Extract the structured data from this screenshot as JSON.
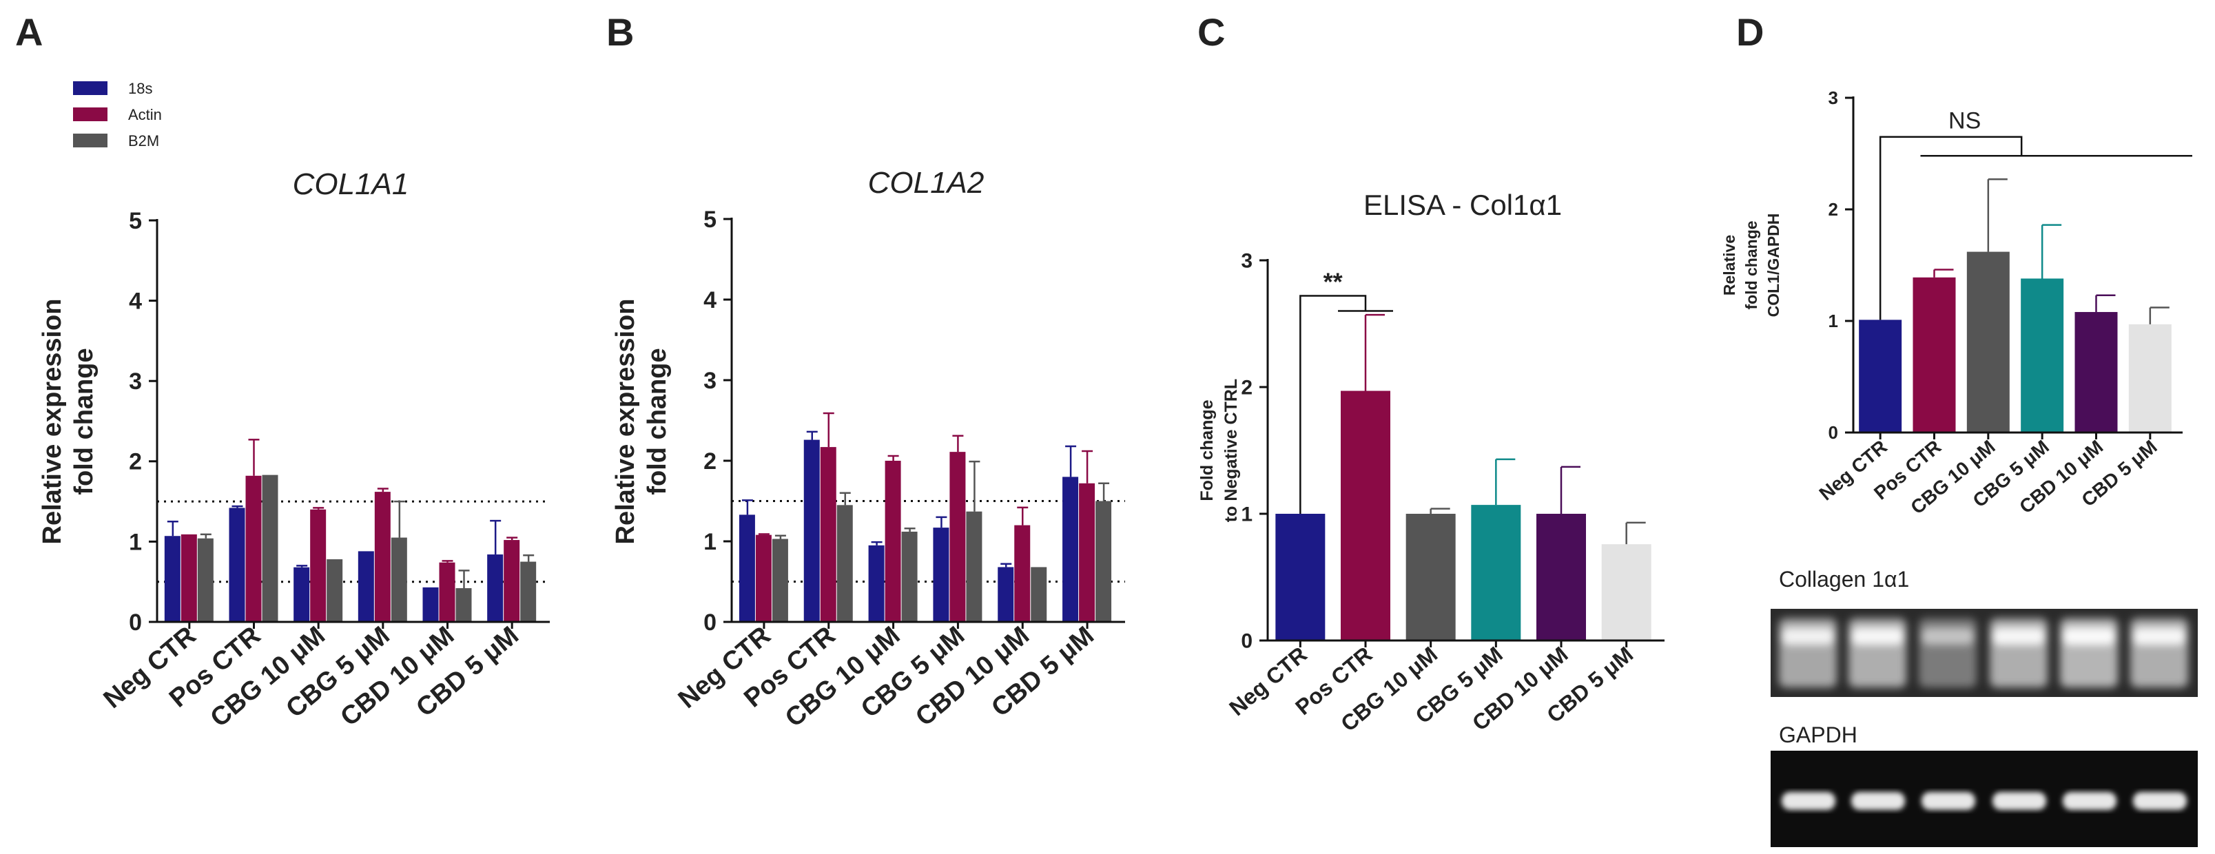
{
  "colors": {
    "neg_ctr": "#1c1a87",
    "pos_ctr": "#8a0a45",
    "cbg10": "#555555",
    "cbg5": "#0f8a8a",
    "cbd10": "#4a0d58",
    "cbd5": "#e3e3e3",
    "s18": "#1c1a87",
    "actin": "#8a0a45",
    "b2m": "#555555"
  },
  "chart_data": [
    {
      "panel": "A",
      "type": "bar",
      "title": "COL1A1",
      "ylabel_lines": [
        "Relative expression",
        "fold change"
      ],
      "xlabel": "",
      "categories": [
        "Neg CTR",
        "Pos CTR",
        "CBG 10 μM",
        "CBG 5 μM",
        "CBD 10 μM",
        "CBD 5 μM"
      ],
      "ylim": [
        0,
        5
      ],
      "yticks": [
        "0",
        "1",
        "2",
        "3",
        "4",
        "5"
      ],
      "reference_lines": [
        0.5,
        1.5
      ],
      "legend": [
        "18s",
        "Actin",
        "B2M"
      ],
      "series": [
        {
          "name": "18s",
          "values": [
            1.07,
            1.42,
            0.68,
            0.88,
            0.43,
            0.84
          ],
          "errors": [
            0.18,
            0.02,
            0.02,
            0.0,
            0.0,
            0.42
          ]
        },
        {
          "name": "Actin",
          "values": [
            1.09,
            1.82,
            1.4,
            1.62,
            0.74,
            1.02
          ],
          "errors": [
            0.0,
            0.45,
            0.02,
            0.04,
            0.02,
            0.03
          ]
        },
        {
          "name": "B2M",
          "values": [
            1.04,
            1.83,
            0.78,
            1.05,
            0.42,
            0.75
          ],
          "errors": [
            0.05,
            0.0,
            0.0,
            0.45,
            0.22,
            0.08
          ]
        }
      ]
    },
    {
      "panel": "B",
      "type": "bar",
      "title": "COL1A2",
      "ylabel_lines": [
        "Relative expression",
        "fold change"
      ],
      "xlabel": "",
      "categories": [
        "Neg CTR",
        "Pos CTR",
        "CBG 10 μM",
        "CBG 5 μM",
        "CBD 10 μM",
        "CBD 5 μM"
      ],
      "ylim": [
        0,
        5
      ],
      "yticks": [
        "0",
        "1",
        "2",
        "3",
        "4",
        "5"
      ],
      "reference_lines": [
        0.5,
        1.5
      ],
      "series": [
        {
          "name": "18s",
          "values": [
            1.33,
            2.26,
            0.95,
            1.17,
            0.68,
            1.8
          ],
          "errors": [
            0.18,
            0.1,
            0.04,
            0.13,
            0.04,
            0.38
          ]
        },
        {
          "name": "Actin",
          "values": [
            1.08,
            2.17,
            2.0,
            2.11,
            1.2,
            1.72
          ],
          "errors": [
            0.01,
            0.42,
            0.06,
            0.2,
            0.22,
            0.4
          ]
        },
        {
          "name": "B2M",
          "values": [
            1.03,
            1.45,
            1.12,
            1.37,
            0.68,
            1.5
          ],
          "errors": [
            0.04,
            0.15,
            0.04,
            0.62,
            0.0,
            0.22
          ]
        }
      ]
    },
    {
      "panel": "C",
      "type": "bar",
      "title": "ELISA - Col1α1",
      "ylabel_lines": [
        "Fold change",
        "to Negative CTRL"
      ],
      "xlabel": "",
      "categories": [
        "Neg CTR",
        "Pos CTR",
        "CBG 10 μM",
        "CBG 5 μM",
        "CBD 10 μM",
        "CBD 5 μM"
      ],
      "ylim": [
        0,
        3
      ],
      "yticks": [
        "0",
        "1",
        "2",
        "3"
      ],
      "series": [
        {
          "name": "",
          "values": [
            1.0,
            1.97,
            1.0,
            1.07,
            1.0,
            0.76
          ],
          "errors": [
            0.0,
            0.6,
            0.04,
            0.36,
            0.37,
            0.17
          ]
        }
      ],
      "annotations": [
        "**"
      ]
    },
    {
      "panel": "D",
      "type": "bar",
      "title": "",
      "ylabel_lines": [
        "Relative",
        "fold change",
        "COL1/GAPDH"
      ],
      "xlabel": "",
      "categories": [
        "Neg CTR",
        "Pos CTR",
        "CBG 10 μM",
        "CBG 5 μM",
        "CBD 10 μM",
        "CBD 5 μM"
      ],
      "ylim": [
        0,
        3
      ],
      "yticks": [
        "0",
        "1",
        "2",
        "3"
      ],
      "series": [
        {
          "name": "",
          "values": [
            1.01,
            1.39,
            1.62,
            1.38,
            1.08,
            0.97
          ],
          "errors": [
            0.0,
            0.07,
            0.65,
            0.48,
            0.15,
            0.15
          ]
        }
      ],
      "annotations": [
        "NS"
      ]
    }
  ],
  "panel_labels": [
    "A",
    "B",
    "C",
    "D"
  ],
  "blots": {
    "top_label": "Collagen 1α1",
    "bottom_label": "GAPDH"
  }
}
